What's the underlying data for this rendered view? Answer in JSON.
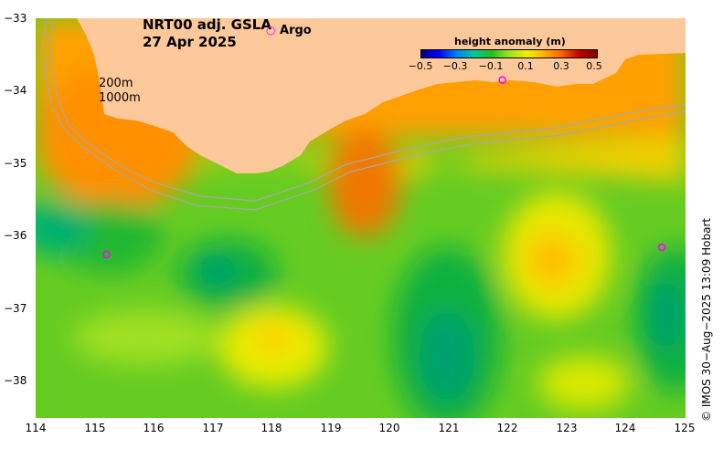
{
  "title": {
    "product": "NRT00 adj. GSLA",
    "date": "27 Apr 2025"
  },
  "legend": {
    "argo_label": "Argo",
    "argo_color": "#ff00ff",
    "isobath_labels": [
      "200m",
      "1000m"
    ],
    "colorbar_title": "height anomaly (m)",
    "colorbar_ticks": [
      "−0.5",
      "−0.3",
      "−0.1",
      "0.1",
      "0.3",
      "0.5"
    ],
    "colorbar_colors": [
      "#000080",
      "#0000ff",
      "#0080ff",
      "#00c8a0",
      "#20c020",
      "#a0e020",
      "#f0f000",
      "#ffb000",
      "#ff6000",
      "#c00000",
      "#800000"
    ]
  },
  "axes": {
    "x_ticks": [
      "114",
      "115",
      "116",
      "117",
      "118",
      "119",
      "120",
      "121",
      "122",
      "123",
      "124",
      "125"
    ],
    "y_ticks": [
      "−33",
      "−34",
      "−35",
      "−36",
      "−37",
      "−38"
    ],
    "xlim": [
      114,
      125
    ],
    "ylim": [
      -38.5,
      -33
    ]
  },
  "credit": "© IMOS 30−Aug−2025 13:09 Hobart",
  "colors": {
    "land": "#fdc89a",
    "isobath": "#a8a8a8"
  },
  "argo_floats": [
    {
      "lon": 115.2,
      "lat": -36.25
    },
    {
      "lon": 124.6,
      "lat": -36.15
    },
    {
      "lon": 121.9,
      "lat": -33.85
    }
  ]
}
